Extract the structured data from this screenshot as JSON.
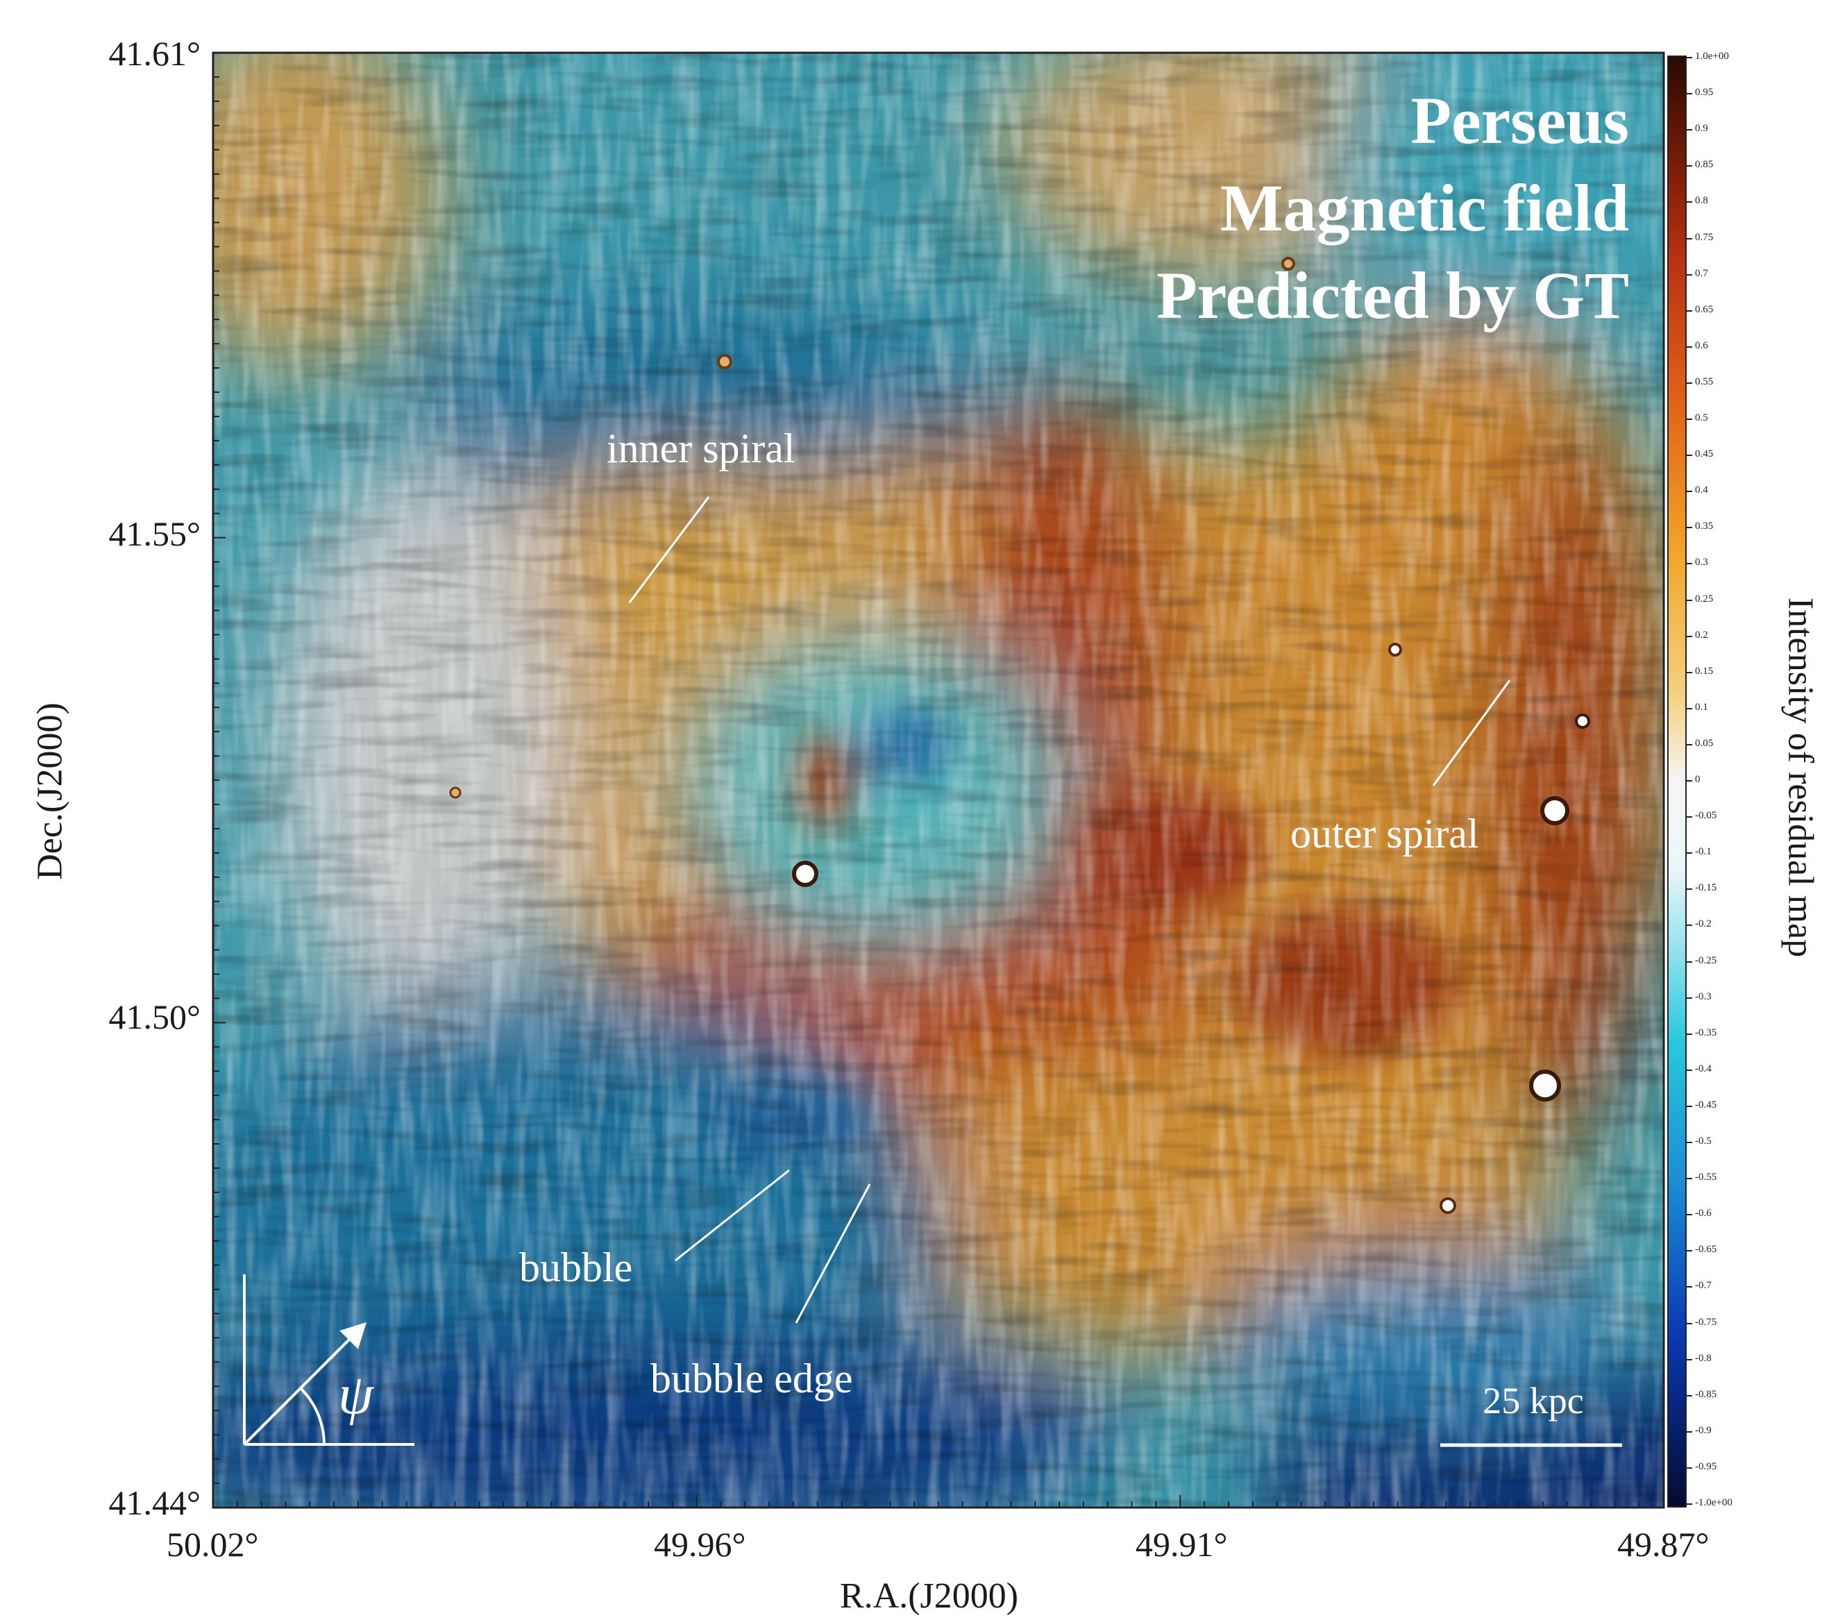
{
  "figure": {
    "title_lines": [
      "Perseus",
      "Magnetic field",
      "Predicted by GT"
    ],
    "annotations": {
      "inner_spiral": "inner spiral",
      "outer_spiral": "outer spiral",
      "bubble": "bubble",
      "bubble_edge": "bubble edge",
      "psi": "ψ",
      "scale_bar": "25 kpc"
    },
    "xaxis": {
      "label": "R.A.(J2000)",
      "ticks": [
        "50.02°",
        "49.96°",
        "49.91°",
        "49.87°"
      ]
    },
    "yaxis": {
      "label": "Dec.(J2000)",
      "ticks": [
        "41.61°",
        "41.55°",
        "41.50°",
        "41.44°"
      ]
    },
    "colorbar": {
      "label": "Intensity of residual map",
      "ticks": [
        "1.0e+00",
        "0.95",
        "0.9",
        "0.85",
        "0.8",
        "0.75",
        "0.7",
        "0.65",
        "0.6",
        "0.55",
        "0.5",
        "0.45",
        "0.4",
        "0.35",
        "0.3",
        "0.25",
        "0.2",
        "0.15",
        "0.1",
        "0.05",
        "0",
        "-0.05",
        "-0.1",
        "-0.15",
        "-0.2",
        "-0.25",
        "-0.3",
        "-0.35",
        "-0.4",
        "-0.45",
        "-0.5",
        "-0.55",
        "-0.6",
        "-0.65",
        "-0.7",
        "-0.75",
        "-0.8",
        "-0.85",
        "-0.9",
        "-0.95",
        "-1.0e+00"
      ],
      "colors": {
        "top": "#2a0a02",
        "high": "#a52a0a",
        "mid_high": "#e8a020",
        "zero": "#f2f2f2",
        "mid_low": "#28c8dc",
        "low": "#0a3ab4",
        "bottom": "#050a30"
      }
    }
  }
}
